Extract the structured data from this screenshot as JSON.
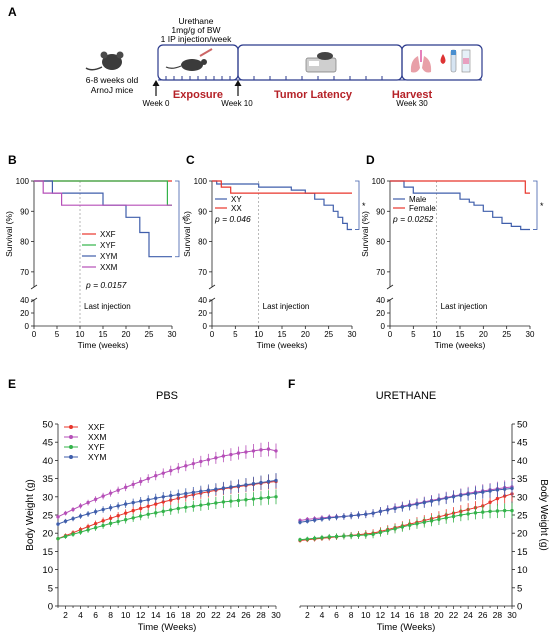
{
  "panels": {
    "A": {
      "letter": "A",
      "mouse_label_1": "6-8 weeks old",
      "mouse_label_2": "ArnoJ mice",
      "treatment_1": "Urethane",
      "treatment_2": "1mg/g of BW",
      "treatment_3": "1 IP injection/week",
      "week0": "Week 0",
      "week10": "Week 10",
      "week30": "Week 30",
      "exposure": "Exposure",
      "latency": "Tumor Latency",
      "harvest": "Harvest"
    },
    "B": {
      "letter": "B"
    },
    "C": {
      "letter": "C"
    },
    "D": {
      "letter": "D"
    },
    "E": {
      "letter": "E"
    },
    "F": {
      "letter": "F"
    }
  },
  "colors": {
    "red": "#e8352b",
    "green": "#33b34a",
    "blue": "#3f5eab",
    "magenta": "#b64fb8",
    "harvest_red": "#b52127",
    "box_border": "#2b3a8c"
  },
  "chart_data": [
    {
      "id": "B",
      "type": "line",
      "step": true,
      "xlabel": "Time (weeks)",
      "ylabel": "Survival (%)",
      "xlim": [
        0,
        30
      ],
      "xticks": [
        0,
        5,
        10,
        15,
        20,
        25,
        30
      ],
      "yticks_upper": [
        70,
        80,
        90,
        100
      ],
      "yticks_lower": [
        0,
        20,
        40
      ],
      "annotation": "Last injection",
      "pvalue": "p = 0.0157",
      "significance": "*",
      "legend_position": "center",
      "series": [
        {
          "name": "XXF",
          "color": "#e8352b",
          "x": [
            0,
            30
          ],
          "y": [
            100,
            100
          ]
        },
        {
          "name": "XYF",
          "color": "#33b34a",
          "x": [
            0,
            29,
            29,
            30
          ],
          "y": [
            100,
            100,
            92,
            92
          ]
        },
        {
          "name": "XYM",
          "color": "#3f5eab",
          "x": [
            0,
            4,
            4,
            15,
            15,
            20,
            20,
            23,
            23,
            25,
            25,
            29,
            29,
            30
          ],
          "y": [
            100,
            100,
            96,
            96,
            92,
            92,
            88,
            88,
            83,
            83,
            75,
            75,
            75,
            75
          ]
        },
        {
          "name": "XXM",
          "color": "#b64fb8",
          "x": [
            0,
            2,
            2,
            6,
            6,
            30
          ],
          "y": [
            100,
            100,
            96,
            96,
            92,
            92
          ]
        }
      ]
    },
    {
      "id": "C",
      "type": "line",
      "step": true,
      "xlabel": "Time (weeks)",
      "ylabel": "Survival (%)",
      "xlim": [
        0,
        30
      ],
      "xticks": [
        0,
        5,
        10,
        15,
        20,
        25,
        30
      ],
      "yticks_upper": [
        70,
        80,
        90,
        100
      ],
      "yticks_lower": [
        0,
        20,
        40
      ],
      "annotation": "Last injection",
      "pvalue": "p = 0.046",
      "significance": "*",
      "legend_position": "top-left",
      "series": [
        {
          "name": "XY",
          "color": "#3f5eab",
          "x": [
            0,
            1,
            1,
            10,
            10,
            17,
            17,
            20,
            20,
            22,
            22,
            24,
            24,
            26,
            26,
            27,
            27,
            28,
            28,
            29,
            29,
            30
          ],
          "y": [
            100,
            100,
            99,
            99,
            98,
            98,
            97,
            97,
            96,
            96,
            94,
            94,
            92,
            92,
            90,
            90,
            88,
            88,
            86,
            86,
            84,
            84
          ]
        },
        {
          "name": "XX",
          "color": "#e8352b",
          "x": [
            0,
            2,
            2,
            4,
            4,
            30
          ],
          "y": [
            100,
            100,
            98,
            98,
            96,
            96
          ]
        }
      ]
    },
    {
      "id": "D",
      "type": "line",
      "step": true,
      "xlabel": "Time (weeks)",
      "ylabel": "Survival (%)",
      "xlim": [
        0,
        30
      ],
      "xticks": [
        0,
        5,
        10,
        15,
        20,
        25,
        30
      ],
      "yticks_upper": [
        70,
        80,
        90,
        100
      ],
      "yticks_lower": [
        0,
        20,
        40
      ],
      "annotation": "Last injection",
      "pvalue": "p = 0.0252",
      "significance": "*",
      "legend_position": "top-left",
      "series": [
        {
          "name": "Male",
          "color": "#3f5eab",
          "x": [
            0,
            3,
            3,
            5,
            5,
            15,
            15,
            17,
            17,
            18,
            18,
            20,
            20,
            22,
            22,
            24,
            24,
            26,
            26,
            28,
            28,
            30
          ],
          "y": [
            100,
            100,
            98,
            98,
            96,
            96,
            94,
            94,
            93,
            93,
            92,
            92,
            90,
            90,
            88,
            88,
            86,
            86,
            85,
            85,
            84,
            84
          ]
        },
        {
          "name": "Female",
          "color": "#e8352b",
          "x": [
            0,
            29,
            29,
            30
          ],
          "y": [
            100,
            100,
            96,
            96
          ]
        }
      ]
    },
    {
      "id": "E",
      "type": "line",
      "title": "PBS",
      "xlabel": "Time (Weeks)",
      "ylabel": "Body Weight (g)",
      "xlim": [
        1,
        30
      ],
      "ylim": [
        0,
        50
      ],
      "xticks": [
        2,
        4,
        6,
        8,
        10,
        12,
        14,
        16,
        18,
        20,
        22,
        24,
        26,
        28,
        30
      ],
      "yticks": [
        0,
        5,
        10,
        15,
        20,
        25,
        30,
        35,
        40,
        45,
        50
      ],
      "legend_position": "top-left",
      "series": [
        {
          "name": "XXF",
          "color": "#e8352b",
          "values": [
            18.5,
            19.3,
            20.1,
            21.0,
            21.8,
            22.6,
            23.4,
            24.1,
            24.8,
            25.5,
            26.2,
            26.8,
            27.4,
            28.0,
            28.6,
            29.1,
            29.6,
            30.1,
            30.6,
            31.0,
            31.4,
            31.8,
            32.2,
            32.5,
            32.8,
            33.1,
            33.4,
            33.7,
            34.0,
            34.2
          ]
        },
        {
          "name": "XXM",
          "color": "#b64fb8",
          "values": [
            24.5,
            25.5,
            26.5,
            27.5,
            28.4,
            29.3,
            30.2,
            31.0,
            31.8,
            32.6,
            33.4,
            34.2,
            35.0,
            35.8,
            36.5,
            37.2,
            37.9,
            38.5,
            39.1,
            39.7,
            40.2,
            40.7,
            41.2,
            41.6,
            42.0,
            42.3,
            42.6,
            42.9,
            43.1,
            42.6
          ]
        },
        {
          "name": "XYF",
          "color": "#33b34a",
          "values": [
            18.5,
            19.1,
            19.7,
            20.3,
            20.9,
            21.5,
            22.1,
            22.7,
            23.2,
            23.7,
            24.2,
            24.7,
            25.2,
            25.6,
            26.0,
            26.4,
            26.8,
            27.1,
            27.4,
            27.7,
            28.0,
            28.3,
            28.6,
            28.8,
            29.0,
            29.2,
            29.4,
            29.6,
            29.8,
            30.0
          ]
        },
        {
          "name": "XYM",
          "color": "#3f5eab",
          "values": [
            22.5,
            23.3,
            24.0,
            24.7,
            25.3,
            25.9,
            26.5,
            27.0,
            27.5,
            28.0,
            28.4,
            28.8,
            29.2,
            29.6,
            30.0,
            30.3,
            30.6,
            30.9,
            31.2,
            31.5,
            31.8,
            32.1,
            32.4,
            32.7,
            33.0,
            33.3,
            33.6,
            33.9,
            34.2,
            34.5
          ]
        }
      ]
    },
    {
      "id": "F",
      "type": "line",
      "title": "URETHANE",
      "xlabel": "Time (Weeks)",
      "ylabel": "Body Weight (g)",
      "xlim": [
        1,
        30
      ],
      "ylim": [
        0,
        50
      ],
      "xticks": [
        2,
        4,
        6,
        8,
        10,
        12,
        14,
        16,
        18,
        20,
        22,
        24,
        26,
        28,
        30
      ],
      "yticks": [
        0,
        5,
        10,
        15,
        20,
        25,
        30,
        35,
        40,
        45,
        50
      ],
      "series": [
        {
          "name": "XXF",
          "color": "#e8352b",
          "values": [
            18.0,
            18.2,
            18.4,
            18.6,
            18.8,
            19.0,
            19.2,
            19.4,
            19.6,
            19.8,
            20.0,
            20.5,
            21.0,
            21.5,
            22.0,
            22.5,
            23.0,
            23.5,
            24.0,
            24.5,
            25.0,
            25.5,
            26.0,
            26.5,
            27.0,
            27.5,
            28.5,
            29.5,
            30.2,
            30.8
          ]
        },
        {
          "name": "XXM",
          "color": "#b64fb8",
          "values": [
            23.5,
            23.8,
            24.0,
            24.2,
            24.4,
            24.5,
            24.6,
            24.8,
            25.0,
            25.2,
            25.5,
            26.0,
            26.5,
            27.0,
            27.4,
            27.8,
            28.2,
            28.6,
            29.0,
            29.4,
            29.8,
            30.2,
            30.6,
            31.0,
            31.3,
            31.6,
            31.9,
            32.2,
            32.5,
            32.7
          ]
        },
        {
          "name": "XYF",
          "color": "#33b34a",
          "values": [
            18.2,
            18.4,
            18.6,
            18.8,
            19.0,
            19.1,
            19.2,
            19.3,
            19.4,
            19.5,
            19.7,
            20.2,
            20.7,
            21.2,
            21.7,
            22.2,
            22.6,
            23.0,
            23.4,
            23.8,
            24.2,
            24.6,
            25.0,
            25.3,
            25.6,
            25.8,
            26.0,
            26.1,
            26.2,
            26.2
          ]
        },
        {
          "name": "XYM",
          "color": "#3f5eab",
          "values": [
            23.0,
            23.3,
            23.6,
            23.9,
            24.2,
            24.4,
            24.6,
            24.8,
            25.0,
            25.2,
            25.5,
            26.0,
            26.4,
            26.8,
            27.2,
            27.6,
            28.0,
            28.4,
            28.8,
            29.2,
            29.6,
            30.0,
            30.4,
            30.7,
            31.0,
            31.3,
            31.6,
            31.9,
            32.1,
            32.3
          ]
        }
      ]
    }
  ]
}
